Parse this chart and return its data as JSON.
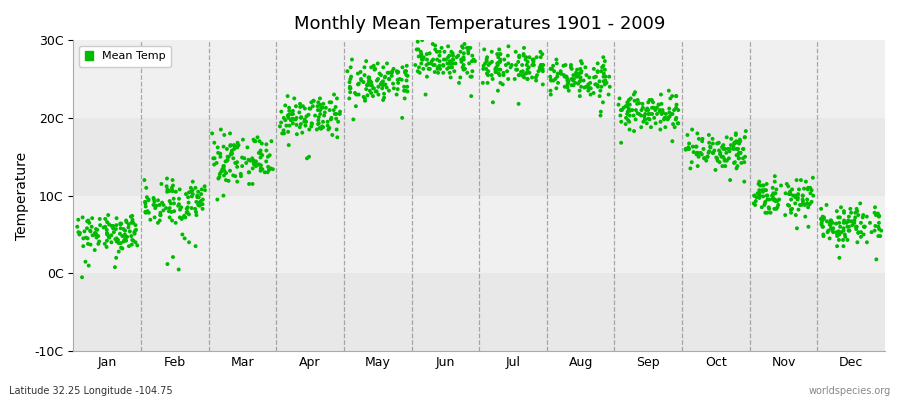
{
  "title": "Monthly Mean Temperatures 1901 - 2009",
  "ylabel": "Temperature",
  "xlabel": "",
  "plot_bg_light": "#ebebeb",
  "plot_bg_dark": "#e0e0e0",
  "figure_bg": "#ffffff",
  "dot_color": "#00bb00",
  "dot_size": 8,
  "ylim": [
    -10,
    30
  ],
  "yticks": [
    -10,
    0,
    10,
    20,
    30
  ],
  "ytick_labels": [
    "-10C",
    "0C",
    "10C",
    "20C",
    "30C"
  ],
  "month_labels": [
    "Jan",
    "Feb",
    "Mar",
    "Apr",
    "May",
    "Jun",
    "Jul",
    "Aug",
    "Sep",
    "Oct",
    "Nov",
    "Dec"
  ],
  "subtitle": "Latitude 32.25 Longitude -104.75",
  "watermark": "worldspecies.org",
  "legend_label": "Mean Temp",
  "grid_line_color": "#888888",
  "hband_colors": [
    "#ebebeb",
    "#e0e0e0"
  ],
  "mean_temps": {
    "1": [
      4.2,
      5.1,
      3.8,
      6.5,
      4.9,
      5.8,
      6.2,
      4.5,
      3.2,
      7.1,
      4.8,
      5.5,
      6.0,
      3.5,
      5.2,
      4.1,
      6.8,
      5.4,
      4.0,
      3.9,
      5.7,
      6.3,
      7.0,
      4.6,
      5.9,
      6.4,
      3.6,
      4.3,
      5.0,
      6.7,
      5.3,
      4.4,
      3.7,
      6.9,
      5.6,
      4.7,
      6.1,
      5.2,
      4.8,
      3.3,
      6.6,
      5.0,
      4.2,
      7.2,
      5.5,
      4.9,
      6.0,
      3.8,
      5.1,
      4.5,
      6.3,
      5.8,
      4.1,
      6.5,
      5.3,
      4.6,
      3.4,
      7.0,
      5.9,
      4.3,
      6.2,
      5.7,
      4.0,
      6.8,
      5.4,
      3.9,
      4.7,
      6.1,
      5.6,
      4.4,
      7.3,
      5.2,
      4.8,
      6.4,
      5.0,
      3.7,
      6.0,
      5.5,
      4.2,
      6.9,
      5.3,
      4.6,
      7.1,
      5.8,
      4.1,
      6.6,
      5.4,
      3.8,
      6.2,
      4.9,
      5.7,
      4.3,
      6.3,
      5.1,
      4.5,
      7.4,
      5.6,
      4.7,
      6.5,
      5.0,
      1.0,
      3.0,
      0.8,
      -0.5,
      1.5,
      7.5,
      2.8,
      3.5,
      2.0
    ],
    "2": [
      7.2,
      8.5,
      6.8,
      9.1,
      7.9,
      8.6,
      9.5,
      7.4,
      6.5,
      10.2,
      8.0,
      9.3,
      10.5,
      7.8,
      8.9,
      7.1,
      10.8,
      8.4,
      7.5,
      6.9,
      9.0,
      10.6,
      11.0,
      8.3,
      9.8,
      10.4,
      7.2,
      7.9,
      8.7,
      10.7,
      9.2,
      8.1,
      7.0,
      11.2,
      9.5,
      8.4,
      10.0,
      9.1,
      8.2,
      6.8,
      10.6,
      8.8,
      7.8,
      11.5,
      9.4,
      8.7,
      10.2,
      7.5,
      8.9,
      8.0,
      10.8,
      9.6,
      7.9,
      10.5,
      9.3,
      8.5,
      7.2,
      11.0,
      9.9,
      8.0,
      10.2,
      9.8,
      7.8,
      11.2,
      9.2,
      7.6,
      8.4,
      10.5,
      9.8,
      8.3,
      12.0,
      9.0,
      8.8,
      10.7,
      8.8,
      7.2,
      10.5,
      9.5,
      7.9,
      11.3,
      9.2,
      8.4,
      11.8,
      9.7,
      7.8,
      11.0,
      9.4,
      7.5,
      10.6,
      8.8,
      9.6,
      7.9,
      10.8,
      9.0,
      8.3,
      12.2,
      9.8,
      8.7,
      11.0,
      9.1,
      1.2,
      3.5,
      2.1,
      0.5,
      4.5,
      12.0,
      5.0,
      6.5,
      4.0
    ],
    "3": [
      12.5,
      13.8,
      11.9,
      14.5,
      13.1,
      14.0,
      15.0,
      12.8,
      11.5,
      16.2,
      13.5,
      14.8,
      16.5,
      13.2,
      14.4,
      12.4,
      16.8,
      14.0,
      12.9,
      12.0,
      14.5,
      16.6,
      17.0,
      13.8,
      15.3,
      16.0,
      12.6,
      13.3,
      14.2,
      16.7,
      14.8,
      13.5,
      12.2,
      17.0,
      15.0,
      13.9,
      15.8,
      14.6,
      13.8,
      11.8,
      16.4,
      14.2,
      13.0,
      17.5,
      14.9,
      14.2,
      15.8,
      12.8,
      14.4,
      13.5,
      16.5,
      15.2,
      13.4,
      16.3,
      14.8,
      14.0,
      12.6,
      16.8,
      15.5,
      13.5,
      15.8,
      15.4,
      13.2,
      17.2,
      14.8,
      13.0,
      14.0,
      16.2,
      15.4,
      13.7,
      18.0,
      14.6,
      14.2,
      16.4,
      14.2,
      12.5,
      16.2,
      15.0,
      13.4,
      17.2,
      14.9,
      13.8,
      18.0,
      15.4,
      13.2,
      17.0,
      15.0,
      13.0,
      16.4,
      14.4,
      15.2,
      13.4,
      16.5,
      14.5,
      13.7,
      18.5,
      15.5,
      14.3,
      17.0,
      14.8,
      10.0,
      11.5,
      9.5,
      15.5,
      13.0,
      17.8,
      14.0,
      16.0,
      14.5
    ],
    "4": [
      18.5,
      19.8,
      17.9,
      20.5,
      19.1,
      19.8,
      20.5,
      18.8,
      17.5,
      21.2,
      19.5,
      20.8,
      21.5,
      19.2,
      20.0,
      18.4,
      21.8,
      20.0,
      18.9,
      18.0,
      20.0,
      21.6,
      22.0,
      19.8,
      20.8,
      21.5,
      18.6,
      19.3,
      20.2,
      21.7,
      20.3,
      19.5,
      18.2,
      22.0,
      20.5,
      19.4,
      21.0,
      20.1,
      19.3,
      17.8,
      21.4,
      19.8,
      18.5,
      22.5,
      20.4,
      19.7,
      21.3,
      18.8,
      19.9,
      19.0,
      21.5,
      20.7,
      19.0,
      21.3,
      20.3,
      19.5,
      18.1,
      21.8,
      20.5,
      19.0,
      21.3,
      20.9,
      18.7,
      22.2,
      20.3,
      18.5,
      19.5,
      21.2,
      21.0,
      19.2,
      22.8,
      20.1,
      19.7,
      21.4,
      19.7,
      18.0,
      21.2,
      20.5,
      18.9,
      22.2,
      20.4,
      19.3,
      22.5,
      20.9,
      18.7,
      22.0,
      20.5,
      18.5,
      21.4,
      19.9,
      20.7,
      18.9,
      21.5,
      20.0,
      19.2,
      23.0,
      21.0,
      19.8,
      22.0,
      20.3,
      15.0,
      16.5,
      14.8,
      20.5,
      19.0,
      22.5,
      19.5,
      21.0,
      20.0
    ],
    "5": [
      23.0,
      24.2,
      22.5,
      25.0,
      23.8,
      24.5,
      25.2,
      23.5,
      22.2,
      25.8,
      24.0,
      25.3,
      26.0,
      23.8,
      24.6,
      22.9,
      26.3,
      24.5,
      23.4,
      22.8,
      24.5,
      26.0,
      26.5,
      24.3,
      25.3,
      26.0,
      23.1,
      23.8,
      24.7,
      26.2,
      24.8,
      24.0,
      22.7,
      26.5,
      25.0,
      23.9,
      25.5,
      24.6,
      23.8,
      22.3,
      25.8,
      24.3,
      23.0,
      27.0,
      24.9,
      24.2,
      25.8,
      23.3,
      24.4,
      23.5,
      26.0,
      25.2,
      23.5,
      25.8,
      24.8,
      24.0,
      22.6,
      26.3,
      25.0,
      23.5,
      25.8,
      25.4,
      23.2,
      26.7,
      24.8,
      23.0,
      24.0,
      25.7,
      25.5,
      23.7,
      27.3,
      24.6,
      24.2,
      25.9,
      24.2,
      22.5,
      25.7,
      25.0,
      23.4,
      26.7,
      24.9,
      23.8,
      27.0,
      25.4,
      23.2,
      26.5,
      25.0,
      23.0,
      25.9,
      24.4,
      25.2,
      23.4,
      26.0,
      24.5,
      23.7,
      27.5,
      25.5,
      24.3,
      26.5,
      24.8,
      20.0,
      21.5,
      19.8,
      24.8,
      22.5,
      26.5,
      23.8,
      25.0,
      24.2
    ],
    "6": [
      26.5,
      27.2,
      25.8,
      27.8,
      26.8,
      27.3,
      27.8,
      26.3,
      25.2,
      28.3,
      27.0,
      27.8,
      28.5,
      26.8,
      27.5,
      26.3,
      28.8,
      27.3,
      26.5,
      25.9,
      27.3,
      28.5,
      29.0,
      27.0,
      27.9,
      28.6,
      26.3,
      26.8,
      27.5,
      28.8,
      27.5,
      27.0,
      25.8,
      29.2,
      27.8,
      26.8,
      28.0,
      27.3,
      26.7,
      25.2,
      28.5,
      27.0,
      25.8,
      29.5,
      27.5,
      27.0,
      28.2,
      26.0,
      27.0,
      26.3,
      28.8,
      27.8,
      26.3,
      28.3,
      27.5,
      26.7,
      25.3,
      29.0,
      27.5,
      26.3,
      28.3,
      28.0,
      26.0,
      29.3,
      27.5,
      25.8,
      26.8,
      28.2,
      28.0,
      26.5,
      29.8,
      27.3,
      27.0,
      28.5,
      27.0,
      25.3,
      28.3,
      27.5,
      26.2,
      29.2,
      27.5,
      26.5,
      29.5,
      28.0,
      26.0,
      29.0,
      27.5,
      25.8,
      28.5,
      27.0,
      28.0,
      26.3,
      28.5,
      27.0,
      26.5,
      30.0,
      28.0,
      27.0,
      29.0,
      27.5,
      23.0,
      24.5,
      22.8,
      27.5,
      25.3,
      29.0,
      26.5,
      27.5,
      26.8
    ],
    "7": [
      25.5,
      26.3,
      24.8,
      26.8,
      25.9,
      26.5,
      27.0,
      25.5,
      24.3,
      27.5,
      26.0,
      27.0,
      27.8,
      25.9,
      26.7,
      25.5,
      28.0,
      26.5,
      25.7,
      25.0,
      26.5,
      27.8,
      28.2,
      26.3,
      27.2,
      27.8,
      25.5,
      26.0,
      26.8,
      28.0,
      26.8,
      26.2,
      25.0,
      28.5,
      27.0,
      26.0,
      27.3,
      26.5,
      25.8,
      24.3,
      27.8,
      26.2,
      25.0,
      28.8,
      26.8,
      26.3,
      27.5,
      25.2,
      26.3,
      25.5,
      28.0,
      27.0,
      25.5,
      27.5,
      26.8,
      25.9,
      24.5,
      28.2,
      26.8,
      25.5,
      27.5,
      27.2,
      25.2,
      28.5,
      26.8,
      25.0,
      26.0,
      27.5,
      27.2,
      25.7,
      29.0,
      26.5,
      26.2,
      27.8,
      26.2,
      24.5,
      27.5,
      26.8,
      25.4,
      28.5,
      26.8,
      25.7,
      28.8,
      27.2,
      25.2,
      28.2,
      26.8,
      25.0,
      27.8,
      26.2,
      27.2,
      25.5,
      27.8,
      26.2,
      25.8,
      29.2,
      27.2,
      26.2,
      28.2,
      26.8,
      22.0,
      23.5,
      21.8,
      26.8,
      24.5,
      28.2,
      25.8,
      26.8,
      26.0
    ],
    "8": [
      24.0,
      24.8,
      23.2,
      25.2,
      24.3,
      24.9,
      25.5,
      24.0,
      22.8,
      25.9,
      24.5,
      25.5,
      26.2,
      24.3,
      25.2,
      23.9,
      26.5,
      25.0,
      24.2,
      23.5,
      25.0,
      26.2,
      26.8,
      24.8,
      25.7,
      26.3,
      24.0,
      24.5,
      25.3,
      26.5,
      25.3,
      24.7,
      23.5,
      27.0,
      25.5,
      24.5,
      25.8,
      25.0,
      24.3,
      22.8,
      26.3,
      24.8,
      23.5,
      27.3,
      25.3,
      24.8,
      26.0,
      23.8,
      24.8,
      24.0,
      26.5,
      25.5,
      24.0,
      26.0,
      25.3,
      24.4,
      23.0,
      26.7,
      25.3,
      24.0,
      26.0,
      25.7,
      23.8,
      27.0,
      25.3,
      23.5,
      24.5,
      26.0,
      25.7,
      24.2,
      27.5,
      25.0,
      24.7,
      26.3,
      24.7,
      23.0,
      26.0,
      25.3,
      23.9,
      27.0,
      25.3,
      24.2,
      27.3,
      25.7,
      23.8,
      26.7,
      25.3,
      23.5,
      26.3,
      24.8,
      25.7,
      24.0,
      26.3,
      24.8,
      24.3,
      27.8,
      25.8,
      24.7,
      26.7,
      25.3,
      20.8,
      22.0,
      20.3,
      25.2,
      23.0,
      26.8,
      24.3,
      25.3,
      24.5
    ],
    "9": [
      19.5,
      20.5,
      18.8,
      21.0,
      20.0,
      20.6,
      21.3,
      19.8,
      18.5,
      21.8,
      20.3,
      21.2,
      22.0,
      20.0,
      20.9,
      19.3,
      22.3,
      20.7,
      19.8,
      19.2,
      20.7,
      21.8,
      22.5,
      20.5,
      21.3,
      22.0,
      19.8,
      20.3,
      21.0,
      22.3,
      21.0,
      20.5,
      19.2,
      22.8,
      21.2,
      20.2,
      21.5,
      20.8,
      20.0,
      18.5,
      22.0,
      20.5,
      19.3,
      23.0,
      21.0,
      20.5,
      21.7,
      19.5,
      20.5,
      19.8,
      22.2,
      21.2,
      19.8,
      21.7,
      21.0,
      20.2,
      18.8,
      22.5,
      21.0,
      19.8,
      21.7,
      21.3,
      19.5,
      22.8,
      21.0,
      19.3,
      20.3,
      21.7,
      21.3,
      19.9,
      23.3,
      20.8,
      20.5,
      21.9,
      20.5,
      18.8,
      21.7,
      21.0,
      19.7,
      22.8,
      21.0,
      20.0,
      23.0,
      21.3,
      19.5,
      22.5,
      21.0,
      19.3,
      21.8,
      20.5,
      21.3,
      19.8,
      21.8,
      20.5,
      20.0,
      23.5,
      21.5,
      20.5,
      22.3,
      21.0,
      17.0,
      18.3,
      16.8,
      21.0,
      18.8,
      22.3,
      20.0,
      21.0,
      20.3
    ],
    "10": [
      14.5,
      15.5,
      13.8,
      16.0,
      15.0,
      15.6,
      16.3,
      14.8,
      13.5,
      16.8,
      15.3,
      16.2,
      17.0,
      15.0,
      15.9,
      14.3,
      17.3,
      15.7,
      14.8,
      14.2,
      15.7,
      16.8,
      17.5,
      15.5,
      16.3,
      17.0,
      14.8,
      15.3,
      16.0,
      17.3,
      16.0,
      15.5,
      14.2,
      17.8,
      16.2,
      15.2,
      16.5,
      15.8,
      15.0,
      13.5,
      17.0,
      15.5,
      14.3,
      18.0,
      16.0,
      15.5,
      16.7,
      14.5,
      15.5,
      14.8,
      17.2,
      16.2,
      14.8,
      16.7,
      16.0,
      15.2,
      13.8,
      17.5,
      16.0,
      14.8,
      16.7,
      16.3,
      14.5,
      17.8,
      16.0,
      14.3,
      15.3,
      16.7,
      16.3,
      14.9,
      18.3,
      15.8,
      15.5,
      16.9,
      15.5,
      13.8,
      16.7,
      16.0,
      14.7,
      17.8,
      16.0,
      15.0,
      18.0,
      16.3,
      14.5,
      17.5,
      16.0,
      14.3,
      16.8,
      15.5,
      16.3,
      14.8,
      16.8,
      15.5,
      15.0,
      18.5,
      16.5,
      15.5,
      17.3,
      16.0,
      12.0,
      13.3,
      11.8,
      16.0,
      13.8,
      17.3,
      15.0,
      16.0,
      15.3
    ],
    "11": [
      8.5,
      9.5,
      7.8,
      10.0,
      9.0,
      9.6,
      10.3,
      8.8,
      7.5,
      10.8,
      9.3,
      10.2,
      11.0,
      9.0,
      9.9,
      8.3,
      11.3,
      9.7,
      8.8,
      8.2,
      9.7,
      10.8,
      11.5,
      9.5,
      10.3,
      11.0,
      8.8,
      9.3,
      10.0,
      11.3,
      10.0,
      9.5,
      8.2,
      11.8,
      10.2,
      9.2,
      10.5,
      9.8,
      9.0,
      7.5,
      11.0,
      9.5,
      8.3,
      12.0,
      10.0,
      9.5,
      10.7,
      8.5,
      9.5,
      8.8,
      11.2,
      10.2,
      8.8,
      10.7,
      10.0,
      9.2,
      7.8,
      11.5,
      10.0,
      8.8,
      10.7,
      10.3,
      8.5,
      11.8,
      10.0,
      8.3,
      9.3,
      10.7,
      10.3,
      8.9,
      12.3,
      9.8,
      9.5,
      10.9,
      9.5,
      7.8,
      10.7,
      10.0,
      8.7,
      11.8,
      10.0,
      9.0,
      12.0,
      10.3,
      8.5,
      11.5,
      10.0,
      8.3,
      10.8,
      9.5,
      10.3,
      8.8,
      10.8,
      9.5,
      9.0,
      12.5,
      10.5,
      9.5,
      11.3,
      10.0,
      6.0,
      7.3,
      5.8,
      10.0,
      7.8,
      11.3,
      9.0,
      10.0,
      9.3
    ],
    "12": [
      5.0,
      6.0,
      4.3,
      6.5,
      5.5,
      6.1,
      6.8,
      5.3,
      4.0,
      7.3,
      5.8,
      6.7,
      7.5,
      5.5,
      6.4,
      4.8,
      7.8,
      6.2,
      5.3,
      4.7,
      6.2,
      7.3,
      8.0,
      6.0,
      6.8,
      7.5,
      5.3,
      5.8,
      6.5,
      7.8,
      6.5,
      6.0,
      4.7,
      8.3,
      6.7,
      5.7,
      7.0,
      6.3,
      5.5,
      4.0,
      7.5,
      6.0,
      4.8,
      8.5,
      6.5,
      6.0,
      7.2,
      5.0,
      6.0,
      5.3,
      7.7,
      6.7,
      5.3,
      7.2,
      6.5,
      5.7,
      4.3,
      8.0,
      6.5,
      5.3,
      7.2,
      6.8,
      5.0,
      8.3,
      6.5,
      4.8,
      5.8,
      7.2,
      6.8,
      5.4,
      8.8,
      6.3,
      6.0,
      7.4,
      6.0,
      4.3,
      7.2,
      6.5,
      5.2,
      8.3,
      6.5,
      5.5,
      8.5,
      6.8,
      5.0,
      8.0,
      6.5,
      4.8,
      7.3,
      6.0,
      6.8,
      5.3,
      7.3,
      6.0,
      5.5,
      9.0,
      7.0,
      6.0,
      7.8,
      6.5,
      2.0,
      3.5,
      1.8,
      5.5,
      3.5,
      7.8,
      4.5,
      5.5,
      5.0
    ]
  }
}
